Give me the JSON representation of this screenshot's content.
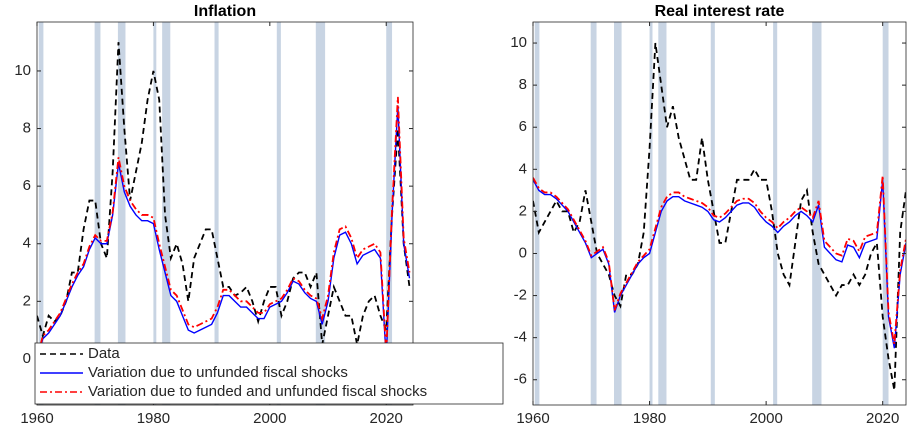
{
  "chart_data": [
    {
      "type": "line",
      "title": "Inflation",
      "x": [
        1960,
        1961,
        1962,
        1963,
        1964,
        1965,
        1966,
        1967,
        1968,
        1969,
        1970,
        1971,
        1972,
        1973,
        1974,
        1975,
        1976,
        1977,
        1978,
        1979,
        1980,
        1981,
        1982,
        1983,
        1984,
        1985,
        1986,
        1987,
        1988,
        1989,
        1990,
        1991,
        1992,
        1993,
        1994,
        1995,
        1996,
        1997,
        1998,
        1999,
        2000,
        2001,
        2002,
        2003,
        2004,
        2005,
        2006,
        2007,
        2008,
        2009,
        2010,
        2011,
        2012,
        2013,
        2014,
        2015,
        2016,
        2017,
        2018,
        2019,
        2020,
        2021,
        2022,
        2023,
        2024
      ],
      "series": [
        {
          "name": "Data",
          "color": "#000000",
          "linestyle": "dashed",
          "values": [
            1.5,
            0.8,
            1.5,
            1.3,
            1.5,
            2,
            3,
            3,
            4.5,
            5.5,
            5.5,
            4,
            3.5,
            6.5,
            11,
            8,
            5.5,
            6.5,
            7.5,
            9,
            10,
            9,
            5,
            3.5,
            4,
            3.3,
            2,
            3.5,
            4,
            4.5,
            4.5,
            3.5,
            2.5,
            2.5,
            2.2,
            2.3,
            2.5,
            2,
            1.3,
            2,
            2.5,
            2.5,
            1.5,
            2,
            2.8,
            3,
            3,
            2.5,
            3,
            0.5,
            1.5,
            2.5,
            2,
            1.5,
            1.5,
            0.5,
            1.5,
            2,
            2.2,
            1.5,
            1,
            5,
            8,
            4,
            2.5
          ]
        },
        {
          "name": "Variation due to unfunded fiscal shocks",
          "color": "#0000ff",
          "linestyle": "solid",
          "values": [
            0,
            0.7,
            0.9,
            1.2,
            1.5,
            2,
            2.5,
            2.9,
            3.2,
            3.8,
            4.2,
            4,
            4,
            5,
            6.8,
            5.8,
            5.3,
            5,
            4.8,
            4.8,
            4.7,
            3.8,
            3,
            2.2,
            2,
            1.5,
            1,
            0.9,
            1,
            1.1,
            1.2,
            1.6,
            2.2,
            2.2,
            2,
            1.8,
            1.8,
            1.6,
            1.4,
            1.4,
            1.8,
            1.9,
            2,
            2.3,
            2.7,
            2.6,
            2.3,
            2.1,
            2,
            1.2,
            2,
            3.5,
            4.3,
            4.4,
            4,
            3.3,
            3.6,
            3.7,
            3.8,
            3.5,
            0,
            5,
            8.8,
            4,
            2.8
          ]
        },
        {
          "name": "Variation due to funded and unfunded fiscal shocks",
          "color": "#ff0000",
          "linestyle": "dashdot",
          "values": [
            0,
            0.8,
            1,
            1.3,
            1.6,
            2.1,
            2.6,
            3,
            3.3,
            3.9,
            4.3,
            4.1,
            4.1,
            5.1,
            7,
            6,
            5.5,
            5.2,
            5,
            5,
            4.9,
            4,
            3.2,
            2.4,
            2.2,
            1.7,
            1.2,
            1.1,
            1.2,
            1.3,
            1.4,
            1.8,
            2.4,
            2.4,
            2.2,
            2,
            2,
            1.8,
            1.6,
            1.6,
            1.9,
            2,
            2.1,
            2.4,
            2.8,
            2.7,
            2.4,
            2.2,
            2.1,
            1.4,
            2.2,
            3.7,
            4.5,
            4.6,
            4.2,
            3.5,
            3.8,
            3.9,
            4,
            3.7,
            0.2,
            5.2,
            9.1,
            4.2,
            3
          ]
        }
      ],
      "xlim": [
        1960,
        2024.6
      ],
      "ylim": [
        -1.6,
        11.7
      ],
      "xticks": [
        1960,
        1980,
        2000,
        2020
      ],
      "yticks": [
        0,
        2,
        4,
        6,
        8,
        10
      ],
      "shaded_periods": [
        [
          1960.3,
          1961.1
        ],
        [
          1969.9,
          1970.9
        ],
        [
          1973.9,
          1975.2
        ],
        [
          1980.0,
          1980.5
        ],
        [
          1981.5,
          1982.9
        ],
        [
          1990.5,
          1991.2
        ],
        [
          2001.2,
          2001.9
        ],
        [
          2007.9,
          2009.5
        ],
        [
          2020.0,
          2021.0
        ]
      ],
      "shade_color": "#c8d4e3",
      "legend": "lower left"
    },
    {
      "type": "line",
      "title": "Real interest rate",
      "x": [
        1960,
        1961,
        1962,
        1963,
        1964,
        1965,
        1966,
        1967,
        1968,
        1969,
        1970,
        1971,
        1972,
        1973,
        1974,
        1975,
        1976,
        1977,
        1978,
        1979,
        1980,
        1981,
        1982,
        1983,
        1984,
        1985,
        1986,
        1987,
        1988,
        1989,
        1990,
        1991,
        1992,
        1993,
        1994,
        1995,
        1996,
        1997,
        1998,
        1999,
        2000,
        2001,
        2002,
        2003,
        2004,
        2005,
        2006,
        2007,
        2008,
        2009,
        2010,
        2011,
        2012,
        2013,
        2014,
        2015,
        2016,
        2017,
        2018,
        2019,
        2020,
        2021,
        2022,
        2023,
        2024
      ],
      "series": [
        {
          "color": "#000000",
          "linestyle": "dashed",
          "values": [
            2.5,
            1,
            1.5,
            2,
            2.5,
            2,
            2,
            1,
            1.5,
            3,
            1.5,
            0,
            -0.5,
            -1,
            -2,
            -2.5,
            -1,
            -1,
            -0.5,
            1,
            5,
            10,
            8,
            6,
            7,
            5.5,
            4.5,
            3.5,
            3.5,
            5.5,
            3.5,
            2,
            0.5,
            0.5,
            2,
            3.5,
            3.5,
            3.5,
            4,
            3.5,
            3.5,
            2,
            0,
            -1,
            -1.5,
            0.5,
            2.5,
            3,
            1,
            -0.5,
            -1,
            -1.5,
            -2,
            -1.5,
            -1.5,
            -1,
            -1.5,
            -1,
            0,
            0.5,
            -3,
            -5,
            -6.5,
            1,
            3
          ]
        },
        {
          "color": "#0000ff",
          "linestyle": "solid",
          "values": [
            3.5,
            3,
            2.8,
            2.8,
            2.6,
            2.3,
            2,
            1.5,
            1,
            0.5,
            -0.2,
            0,
            0.2,
            -0.5,
            -2.8,
            -2,
            -1.5,
            -1,
            -0.5,
            -0.2,
            0,
            1,
            2,
            2.5,
            2.7,
            2.7,
            2.5,
            2.4,
            2.3,
            2.2,
            2,
            1.6,
            1.5,
            1.7,
            2,
            2.3,
            2.4,
            2.4,
            2.2,
            1.8,
            1.5,
            1.3,
            1,
            1.3,
            1.5,
            1.8,
            2,
            1.8,
            1.5,
            2.3,
            0.3,
            0,
            -0.3,
            -0.4,
            0.4,
            0.3,
            -0.2,
            0.5,
            0.6,
            0.7,
            3.5,
            -3,
            -4.5,
            -1,
            0.5
          ]
        },
        {
          "color": "#ff0000",
          "linestyle": "dashdot",
          "values": [
            3.6,
            3.1,
            2.9,
            2.9,
            2.7,
            2.4,
            2.1,
            1.6,
            1.1,
            0.6,
            -0.1,
            0.1,
            0.3,
            -0.4,
            -2.7,
            -1.9,
            -1.4,
            -0.9,
            -0.4,
            -0.1,
            0.2,
            1.2,
            2.2,
            2.7,
            2.9,
            2.9,
            2.7,
            2.6,
            2.5,
            2.4,
            2.2,
            1.8,
            1.7,
            1.9,
            2.2,
            2.5,
            2.6,
            2.6,
            2.4,
            2,
            1.7,
            1.5,
            1.2,
            1.5,
            1.7,
            2,
            2.2,
            2,
            1.7,
            2.5,
            0.6,
            0.3,
            0,
            -0.1,
            0.7,
            0.6,
            0.1,
            0.8,
            0.9,
            1,
            3.7,
            -2.8,
            -4.3,
            -0.8,
            0.7
          ]
        }
      ],
      "xlim": [
        1960,
        2024
      ],
      "ylim": [
        -7.2,
        11
      ],
      "xticks": [
        1960,
        1980,
        2000,
        2020
      ],
      "yticks": [
        -6,
        -4,
        -2,
        0,
        2,
        4,
        6,
        8,
        10
      ],
      "shaded_periods": [
        [
          1960.3,
          1961.1
        ],
        [
          1969.9,
          1970.9
        ],
        [
          1973.9,
          1975.2
        ],
        [
          1980.0,
          1980.5
        ],
        [
          1981.5,
          1982.9
        ],
        [
          1990.5,
          1991.2
        ],
        [
          2001.2,
          2001.9
        ],
        [
          2007.9,
          2009.5
        ],
        [
          2020.0,
          2021.0
        ]
      ],
      "shade_color": "#c8d4e3"
    }
  ]
}
